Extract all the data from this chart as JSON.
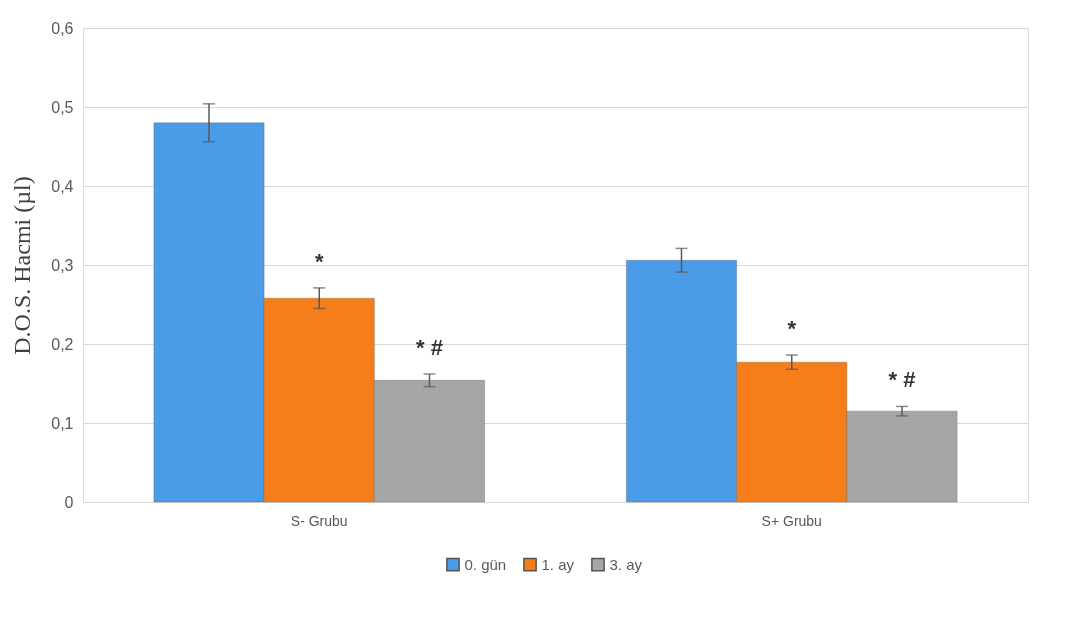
{
  "chart_data": {
    "type": "bar",
    "ylabel": "D.O.S. Hacmi (µl)",
    "categories": [
      "S- Grubu",
      "S+ Grubu"
    ],
    "series": [
      {
        "name": "0. gün",
        "color": "#4a9be8",
        "values": [
          0.48,
          0.306
        ],
        "errors": [
          0.024,
          0.015
        ]
      },
      {
        "name": "1. ay",
        "color": "#f57d1a",
        "values": [
          0.258,
          0.177
        ],
        "errors": [
          0.013,
          0.009
        ],
        "value_labels": [
          "*",
          "*"
        ]
      },
      {
        "name": "3. ay",
        "color": "#a6a6a6",
        "values": [
          0.154,
          0.115
        ],
        "errors": [
          0.008,
          0.006
        ],
        "value_labels": [
          "*  #",
          "*  #"
        ]
      }
    ],
    "ylim": [
      0,
      0.6
    ],
    "yticks": [
      0,
      {
        "value": 0.1,
        "label": "0,1"
      },
      {
        "value": 0.2,
        "label": "0,2"
      },
      {
        "value": 0.3,
        "label": "0,3"
      },
      {
        "value": 0.4,
        "label": "0,4"
      },
      {
        "value": 0.5,
        "label": "0,5"
      },
      {
        "value": 0.6,
        "label": "0,6"
      }
    ],
    "grid": "y",
    "legend": "bottom"
  }
}
